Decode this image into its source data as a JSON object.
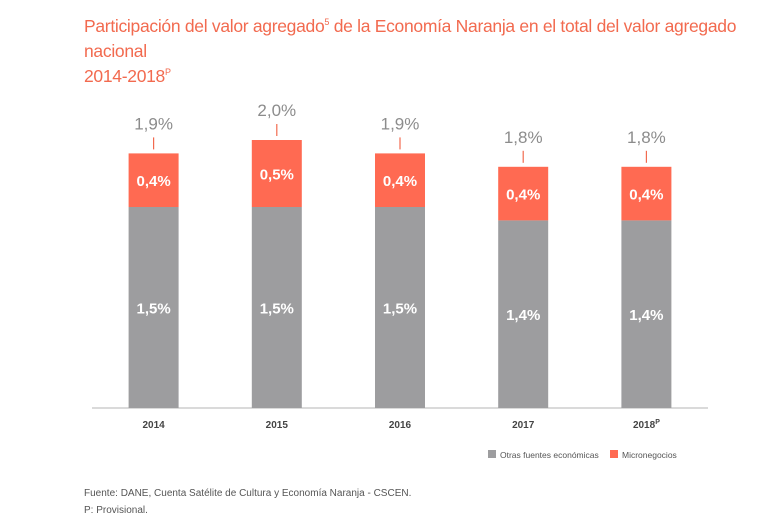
{
  "title": {
    "part1": "Participación del valor agregado",
    "sup": "5",
    "part2": " de la Economía Naranja en el total del valor agregado nacional",
    "line2": "2014-2018",
    "line2_sup": "P"
  },
  "chart_data": {
    "type": "bar",
    "stacked": true,
    "categories": [
      {
        "label": "2014",
        "sup": ""
      },
      {
        "label": "2015",
        "sup": ""
      },
      {
        "label": "2016",
        "sup": ""
      },
      {
        "label": "2017",
        "sup": ""
      },
      {
        "label": "2018",
        "sup": "P"
      }
    ],
    "series": [
      {
        "name": "Otras fuentes económicas",
        "color": "#9d9d9f",
        "values": [
          1.5,
          1.5,
          1.5,
          1.4,
          1.4
        ],
        "labels": [
          "1,5%",
          "1,5%",
          "1,5%",
          "1,4%",
          "1,4%"
        ]
      },
      {
        "name": "Micronegocios",
        "color": "#ff6a52",
        "values": [
          0.4,
          0.5,
          0.4,
          0.4,
          0.4
        ],
        "labels": [
          "0,4%",
          "0,5%",
          "0,4%",
          "0,4%",
          "0,4%"
        ]
      }
    ],
    "totals": [
      1.9,
      2.0,
      1.9,
      1.8,
      1.8
    ],
    "total_labels": [
      "1,9%",
      "2,0%",
      "1,9%",
      "1,8%",
      "1,8%"
    ],
    "ylim": [
      0,
      2.1
    ],
    "grid": false,
    "legend_position": "bottom-right"
  },
  "source": {
    "line1": "Fuente: DANE, Cuenta Satélite de Cultura y Economía Naranja - CSCEN.",
    "line2": "P: Provisional."
  }
}
